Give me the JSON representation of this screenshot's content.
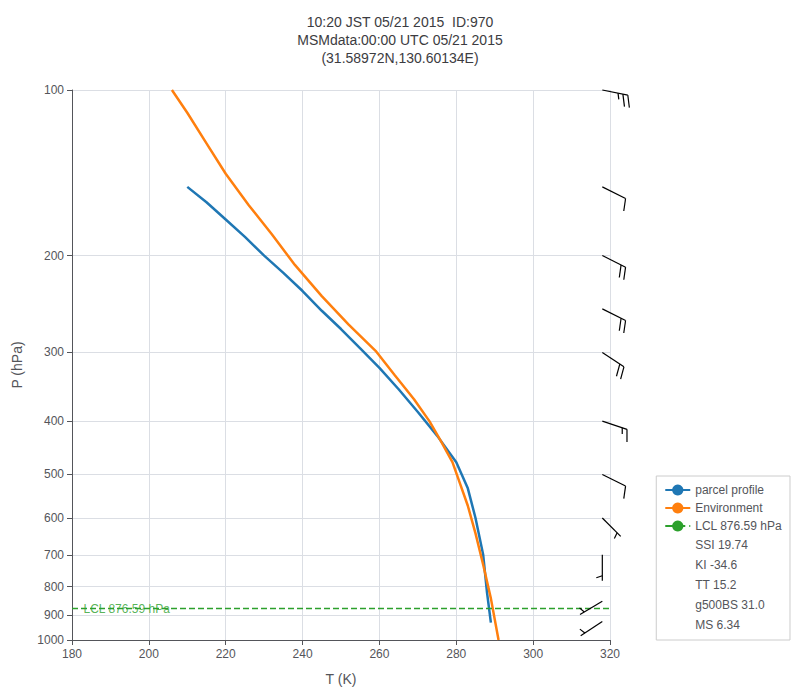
{
  "chart_data": {
    "type": "line",
    "title": "10:20 JST 05/21 2015  ID:970\nMSMdata:00:00 UTC 05/21 2015\n(31.58972N,130.60134E)",
    "xlabel": "T (K)",
    "ylabel": "P (hPa)",
    "log": "y",
    "xlim": [
      180,
      320
    ],
    "ylim": [
      1000,
      100
    ],
    "xticks": [
      180,
      200,
      220,
      240,
      260,
      280,
      300,
      320
    ],
    "yticks": [
      100,
      200,
      300,
      400,
      500,
      600,
      700,
      800,
      900,
      1000
    ],
    "grid": true,
    "legend": "lower right",
    "series": [
      {
        "name": "parcel profile",
        "color": "#1f77b4",
        "x": [
          210,
          215,
          220,
          225,
          230,
          235,
          240,
          245,
          250,
          255,
          260,
          265,
          270,
          275,
          280,
          283,
          285,
          287,
          288,
          289
        ],
        "values": [
          150,
          160,
          172,
          185,
          200,
          215,
          232,
          252,
          272,
          295,
          320,
          350,
          385,
          425,
          475,
          530,
          600,
          700,
          820,
          930
        ]
      },
      {
        "name": "Environment",
        "color": "#ff7f0e",
        "x": [
          206,
          210,
          215,
          220,
          226,
          232,
          238,
          245,
          252,
          259,
          264,
          269,
          273,
          276,
          279,
          281,
          283,
          285,
          287,
          289,
          291
        ],
        "values": [
          100,
          110,
          125,
          142,
          162,
          183,
          208,
          237,
          267,
          298,
          330,
          365,
          400,
          435,
          475,
          520,
          570,
          640,
          730,
          840,
          1000
        ]
      },
      {
        "name": "LCL 876.59 hPa",
        "type": "hline",
        "color": "#2ca02c",
        "line_style": "dashed",
        "values": [
          876.59
        ]
      },
      {
        "type": "barbs",
        "color": "#000000",
        "x": [
          318,
          318,
          318,
          318,
          318,
          318,
          318,
          318,
          318,
          318,
          318
        ],
        "values": [
          100,
          150,
          200,
          250,
          300,
          400,
          500,
          600,
          700,
          850,
          925
        ],
        "u": [
          -25,
          -10,
          -20,
          -20,
          -15,
          -15,
          -10,
          -5,
          0,
          5,
          3
        ],
        "v": [
          5,
          5,
          10,
          10,
          10,
          5,
          5,
          5,
          5,
          3,
          2
        ]
      }
    ],
    "annotations": [
      {
        "text": "LCL 876.59 hPa",
        "x": 183,
        "y": 876.59,
        "color": "#2ca02c"
      }
    ],
    "legend_notes": [
      "SSI 19.74",
      "KI -34.6",
      "TT 15.2",
      "g500BS 31.0",
      "MS 6.34"
    ]
  }
}
